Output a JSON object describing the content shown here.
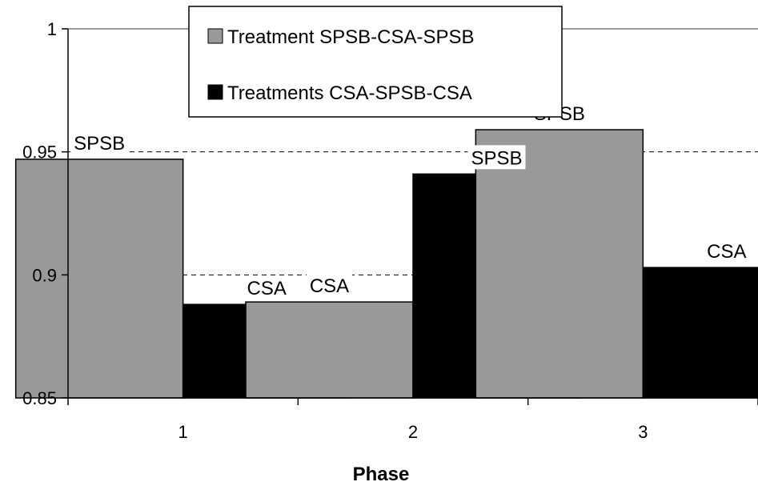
{
  "chart_data": {
    "type": "bar",
    "categories": [
      "1",
      "2",
      "3"
    ],
    "series": [
      {
        "name": "Treatment SPSB-CSA-SPSB",
        "values": [
          0.947,
          0.889,
          0.959
        ],
        "labels": [
          "SPSB",
          "CSA",
          "SPSB"
        ],
        "color": "#999999"
      },
      {
        "name": "Treatments CSA-SPSB-CSA",
        "values": [
          0.888,
          0.941,
          0.903
        ],
        "labels": [
          "CSA",
          "SPSB",
          "CSA"
        ],
        "color": "#000000"
      }
    ],
    "title": "",
    "xlabel": "Phase",
    "ylabel": "",
    "ylim": [
      0.85,
      1
    ],
    "yticks": [
      0.85,
      0.9,
      0.95,
      1
    ],
    "ytick_labels": [
      "0.85",
      "0.9",
      "0.95",
      "1"
    ],
    "grid": "horizontal dashed",
    "legend_position": "top-center"
  }
}
